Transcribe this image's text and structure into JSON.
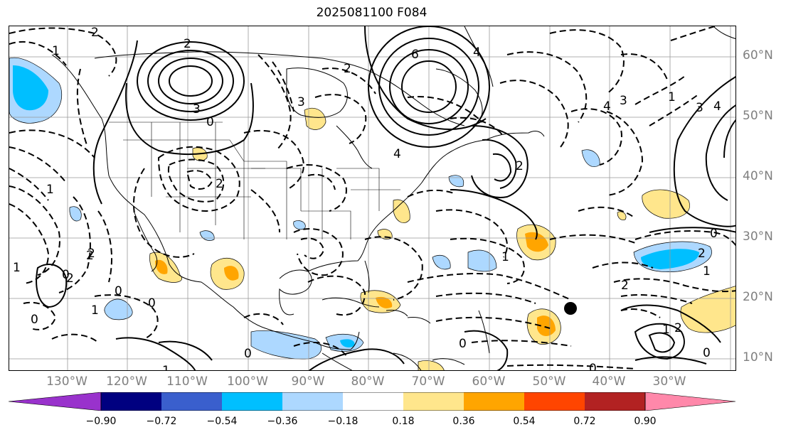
{
  "title": "2025081100 F084",
  "lon_labels": [
    "130°W",
    "120°W",
    "110°W",
    "100°W",
    "90°W",
    "80°W",
    "70°W",
    "60°W",
    "50°W",
    "40°W",
    "30°W"
  ],
  "lat_labels": [
    "60°N",
    "50°N",
    "40°N",
    "30°N",
    "20°N",
    "10°N"
  ],
  "colorbar": {
    "ticks": [
      "−0.90",
      "−0.72",
      "−0.54",
      "−0.36",
      "−0.18",
      "0.18",
      "0.36",
      "0.54",
      "0.72",
      "0.90"
    ],
    "colors": [
      "#9932cc",
      "#000080",
      "#3a5fcd",
      "#00bfff",
      "#add8ff",
      "#ffffff",
      "#ffe68c",
      "#ffa500",
      "#ff4500",
      "#b22222",
      "#ff88aa"
    ]
  },
  "contour_labels": [
    "2",
    "1",
    "2",
    "3",
    "2",
    "0",
    "1",
    "4",
    "6",
    "4",
    "3",
    "2",
    "4",
    "3",
    "2",
    "1",
    "3",
    "4",
    "0",
    "2",
    "1",
    "2",
    "1",
    "2",
    "0",
    "0",
    "0",
    "1",
    "0",
    "1",
    "2",
    "2",
    "0",
    "1",
    "0",
    "0",
    "2",
    "1",
    "0"
  ],
  "marker": "black-dot"
}
